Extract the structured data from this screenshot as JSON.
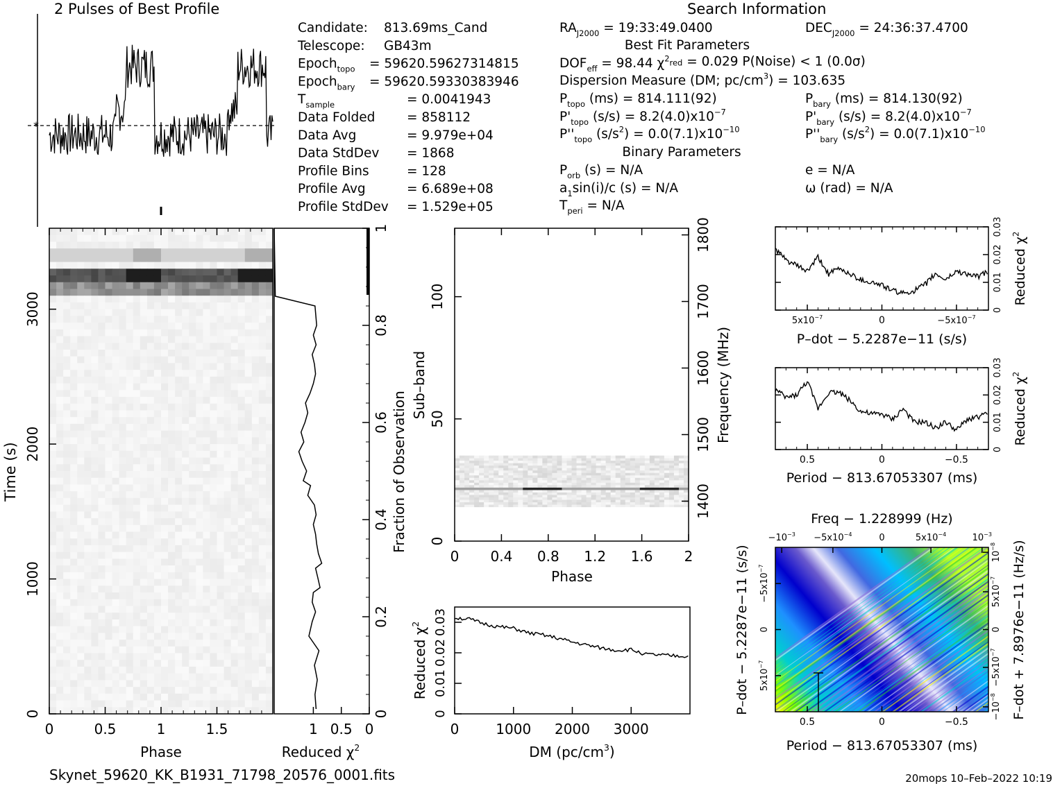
{
  "title": "2 Pulses of Best Profile",
  "search_title": "Search Information",
  "footer": {
    "filename": "Skynet_59620_KK_B1931_71798_20576_0001.fits",
    "stamp": "20mops 10–Feb–2022 10:19"
  },
  "info": {
    "left": [
      {
        "label": "Candidate:",
        "value": "813.69ms_Cand"
      },
      {
        "label": "Telescope:",
        "value": "GB43m"
      },
      {
        "label": "Epoch",
        "sub": "topo",
        "value": "= 59620.59627314815"
      },
      {
        "label": "Epoch",
        "sub": "bary",
        "value": "= 59620.59330383946"
      },
      {
        "label": "T",
        "sub": "sample",
        "value": "=   0.0041943"
      },
      {
        "label": "Data Folded",
        "value": "=   858112"
      },
      {
        "label": "Data Avg",
        "value": "=   9.979e+04"
      },
      {
        "label": "Data StdDev",
        "value": "=   1868"
      },
      {
        "label": "Profile Bins",
        "value": "=   128"
      },
      {
        "label": "Profile Avg",
        "value": "=   6.689e+08"
      },
      {
        "label": "Profile StdDev",
        "value": "=   1.529e+05"
      }
    ],
    "ra_label": "RA",
    "ra_sub": "J2000",
    "ra_value": "= 19:33:49.0400",
    "dec_label": "DEC",
    "dec_sub": "J2000",
    "dec_value": "= 24:36:37.4700",
    "best_fit_title": "Best Fit Parameters",
    "dof": "DOF",
    "dof_sub": "eff",
    "dof_value": "= 98.44",
    "chi_value": "= 0.029",
    "chi_sub": "red",
    "pnoise": "P(Noise) < 1   (0.0σ)",
    "dm_line": "Dispersion Measure (DM; pc/cm",
    "dm_value": ") = 103.635",
    "ptopo": "(ms) =  814.111(92)",
    "pbary": "(ms) =  814.130(92)",
    "pdtopo": "(s/s) =  8.2(4.0)x10",
    "pdbary": "(s/s) =  8.2(4.0)x10",
    "pdexp": "−7",
    "pddtopo": "(s/s",
    "pddval": ") = 0.0(7.1)x10",
    "pddexp": "−10",
    "binary_title": "Binary Parameters",
    "porb": "(s) = N/A",
    "ecc": "e = N/A",
    "a1sin": "sin(i)/c (s) = N/A",
    "omega": "ω (rad) = N/A",
    "tperi": "= N/A"
  },
  "chart_data": [
    {
      "type": "line",
      "name": "profile",
      "title": "2 Pulses of Best Profile",
      "xlim": [
        0,
        2
      ],
      "note": "two identical pulse periods, pulse at phase ~0.7-0.95"
    },
    {
      "type": "heatmap",
      "name": "time-phase",
      "xlabel": "Phase",
      "ylabel": "Time (s)",
      "xlim": [
        0,
        2
      ],
      "ylim": [
        0,
        3600
      ],
      "xticks": [
        "0",
        "0.5",
        "1",
        "1.5"
      ],
      "yticks": [
        "0",
        "1000",
        "2000",
        "3000"
      ]
    },
    {
      "type": "line",
      "name": "reduced-chi2-vs-time",
      "xlabel": "Reduced χ",
      "ylabel": "Fraction of Observation",
      "xlim": [
        1.7,
        0
      ],
      "ylim": [
        0,
        1
      ],
      "xticks": [
        "1",
        "0.5",
        "0"
      ],
      "yticks": [
        "0",
        "0.2",
        "0.4",
        "0.6",
        "0.8",
        "1"
      ],
      "x": [
        0.95,
        0.97,
        0.93,
        0.98,
        0.9,
        1.08,
        1.02,
        0.96,
        1.02,
        1.0,
        0.88,
        0.92,
        0.96,
        0.85,
        0.91,
        0.94,
        0.96,
        1.0,
        0.95,
        0.98,
        1.1,
        1.05,
        1.18,
        1.12,
        1.2,
        1.26,
        1.17,
        1.22,
        1.15,
        1.1,
        1.14,
        1.06,
        1.0,
        0.96,
        0.98,
        1.02,
        0.95,
        1.0,
        0.94,
        0.97,
        1.68,
        1.7
      ],
      "y": [
        0.01,
        0.04,
        0.07,
        0.1,
        0.13,
        0.16,
        0.19,
        0.21,
        0.23,
        0.25,
        0.26,
        0.28,
        0.3,
        0.31,
        0.33,
        0.35,
        0.37,
        0.39,
        0.41,
        0.43,
        0.45,
        0.47,
        0.48,
        0.5,
        0.52,
        0.54,
        0.56,
        0.58,
        0.6,
        0.62,
        0.64,
        0.66,
        0.68,
        0.7,
        0.72,
        0.74,
        0.76,
        0.78,
        0.8,
        0.84,
        0.86,
        1.0
      ]
    },
    {
      "type": "heatmap",
      "name": "subband-phase",
      "xlabel": "Phase",
      "ylabel": "Sub–band",
      "y2label": "Frequency (MHz)",
      "xlim": [
        0,
        2
      ],
      "ylim": [
        0,
        128
      ],
      "xticks": [
        "0",
        "0.4",
        "0.8",
        "1.2",
        "1.6",
        "2"
      ],
      "yticks": [
        "0",
        "50",
        "100"
      ],
      "y2ticks": [
        "1400",
        "1500",
        "1600",
        "1700",
        "1800"
      ],
      "signal_band": [
        14,
        35
      ],
      "bright_subband": 21
    },
    {
      "type": "line",
      "name": "reduced-chi2-vs-dm",
      "xlabel": "DM (pc/cm",
      "ylabel": "Reduced χ",
      "xlim": [
        0,
        4000
      ],
      "ylim": [
        0,
        0.035
      ],
      "xticks": [
        "0",
        "1000",
        "2000",
        "3000"
      ],
      "yticks": [
        "0",
        "0.01",
        "0.02",
        "0.03"
      ],
      "x": [
        0,
        250,
        500,
        750,
        1000,
        1250,
        1500,
        1750,
        2000,
        2250,
        2500,
        2750,
        3000,
        3250,
        3500,
        3750,
        4000
      ],
      "y": [
        0.0315,
        0.031,
        0.0295,
        0.0285,
        0.028,
        0.0265,
        0.0258,
        0.0248,
        0.0235,
        0.0225,
        0.0215,
        0.0208,
        0.021,
        0.0195,
        0.0192,
        0.019,
        0.0188
      ]
    },
    {
      "type": "line",
      "name": "pdot-chi2",
      "xlabel": "P–dot − 5.2287e−11 (s/s)",
      "ylabel": "Reduced χ",
      "xticks": [
        "5x10",
        "0",
        "−5x10"
      ],
      "xticksexp": "−7",
      "yticks": [
        "0",
        "0.01",
        "0.02",
        "0.03"
      ],
      "ylim": [
        0,
        0.03
      ],
      "x": [
        0,
        0.05,
        0.1,
        0.15,
        0.2,
        0.25,
        0.3,
        0.35,
        0.4,
        0.45,
        0.5,
        0.55,
        0.6,
        0.65,
        0.7,
        0.75,
        0.8,
        0.85,
        0.9,
        0.95,
        1.0
      ],
      "y": [
        0.022,
        0.018,
        0.016,
        0.014,
        0.019,
        0.013,
        0.015,
        0.013,
        0.011,
        0.01,
        0.009,
        0.007,
        0.006,
        0.007,
        0.009,
        0.013,
        0.011,
        0.014,
        0.013,
        0.012,
        0.014
      ]
    },
    {
      "type": "line",
      "name": "period-chi2",
      "xlabel": "Period − 813.67053307 (ms)",
      "ylabel": "Reduced χ",
      "xticks": [
        "0.5",
        "0",
        "−0.5"
      ],
      "yticks": [
        "0",
        "0.01",
        "0.02",
        "0.03"
      ],
      "ylim": [
        0,
        0.03
      ],
      "x": [
        0,
        0.05,
        0.1,
        0.15,
        0.2,
        0.25,
        0.3,
        0.35,
        0.4,
        0.45,
        0.5,
        0.55,
        0.6,
        0.65,
        0.7,
        0.75,
        0.8,
        0.85,
        0.9,
        0.95,
        1.0
      ],
      "y": [
        0.022,
        0.019,
        0.02,
        0.025,
        0.015,
        0.021,
        0.021,
        0.018,
        0.014,
        0.013,
        0.013,
        0.011,
        0.015,
        0.01,
        0.01,
        0.008,
        0.01,
        0.007,
        0.011,
        0.012,
        0.013
      ]
    },
    {
      "type": "heatmap",
      "name": "period-pdot-plane",
      "title": "Freq − 1.228999 (Hz)",
      "xlabel": "Period − 813.67053307 (ms)",
      "ylabel": "P–dot − 5.2287e−11 (s/s)",
      "y2label": "F–dot + 7.8976e−11 (Hz/s)",
      "xticks": [
        "0.5",
        "0",
        "−0.5"
      ],
      "x2ticks": [
        "−10",
        "−5x10",
        "0",
        "5x10",
        "10"
      ],
      "x2ticksexp": [
        "−3",
        "−4",
        "",
        "−4",
        "−3"
      ],
      "yticks": [
        "5x10",
        "0",
        "−5x10"
      ],
      "yticksexp": "−7",
      "y2ticks": [
        "−10",
        "−5x10",
        "0",
        "5x10",
        "10"
      ],
      "y2ticksexp": [
        "−8",
        "−7",
        "",
        "−7",
        "−8"
      ],
      "colors": [
        "#ffff00",
        "#32cd32",
        "#00ced1",
        "#1e90ff",
        "#0000cd",
        "#4169e1",
        "#9370db",
        "#e6e6fa"
      ]
    }
  ]
}
